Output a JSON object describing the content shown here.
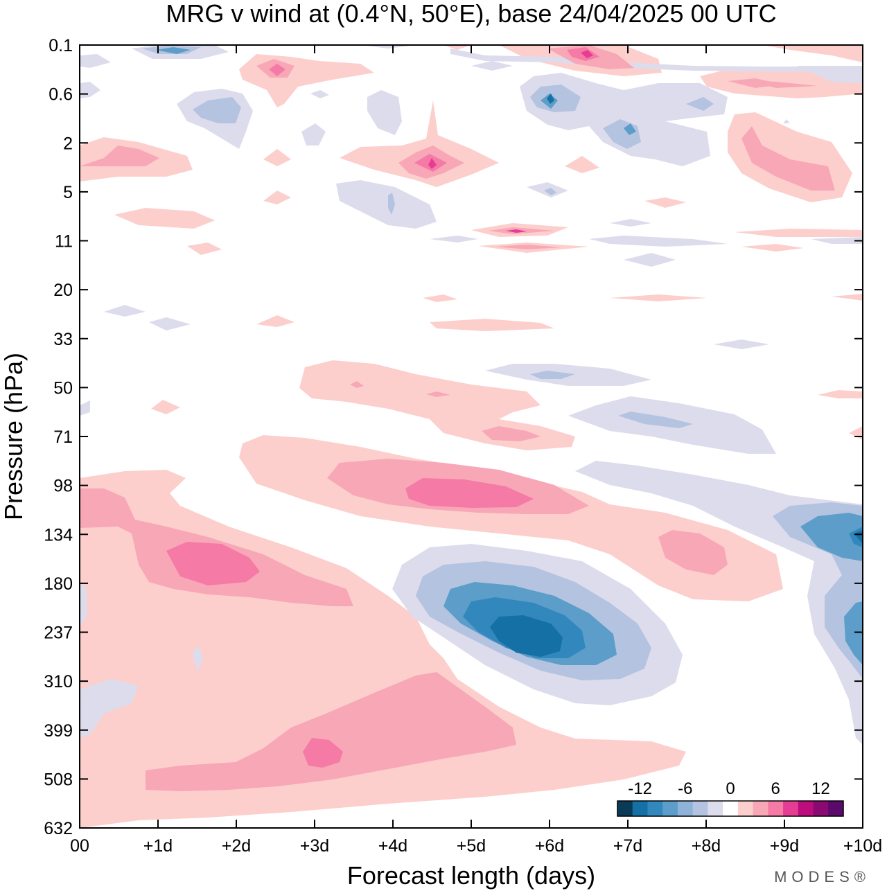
{
  "title": "MRG v wind at (0.4°N, 50°E),  base 24/04/2025  00 UTC",
  "brand": "MODES®",
  "chart_data": {
    "type": "contour",
    "title": "MRG v wind at (0.4°N, 50°E),  base 24/04/2025  00 UTC",
    "xlabel": "Forecast length (days)",
    "ylabel": "Pressure (hPa)",
    "xlim": [
      0,
      10
    ],
    "x_ticks": [
      {
        "value": 0,
        "label": "00"
      },
      {
        "value": 1,
        "label": "+1d"
      },
      {
        "value": 2,
        "label": "+2d"
      },
      {
        "value": 3,
        "label": "+3d"
      },
      {
        "value": 4,
        "label": "+4d"
      },
      {
        "value": 5,
        "label": "+5d"
      },
      {
        "value": 6,
        "label": "+6d"
      },
      {
        "value": 7,
        "label": "+7d"
      },
      {
        "value": 8,
        "label": "+8d"
      },
      {
        "value": 9,
        "label": "+9d"
      },
      {
        "value": 10,
        "label": "+10d"
      }
    ],
    "y_levels": [
      "0.1",
      "0.6",
      "2",
      "5",
      "11",
      "20",
      "33",
      "50",
      "71",
      "98",
      "134",
      "180",
      "237",
      "310",
      "399",
      "508",
      "632"
    ],
    "colorbar": {
      "levels": [
        -15,
        -12.5,
        -10,
        -7.5,
        -5,
        -2.5,
        0,
        2.5,
        5,
        7.5,
        10,
        12.5,
        15
      ],
      "ticks": [
        {
          "value": -12,
          "label": "-12"
        },
        {
          "value": -6,
          "label": "-6"
        },
        {
          "value": 0,
          "label": "0"
        },
        {
          "value": 6,
          "label": "6"
        },
        {
          "value": 12,
          "label": "12"
        }
      ],
      "colors": [
        "#0b3a57",
        "#1570a6",
        "#3288bd",
        "#5c9ec9",
        "#8fb3d8",
        "#b4c3e0",
        "#dddcec",
        "#ffffff",
        "#fccfcd",
        "#f8a7b7",
        "#f57aa6",
        "#e63d94",
        "#bd0c7d",
        "#8a0a72",
        "#5a0a6a"
      ]
    },
    "features": [
      {
        "sign": "negative",
        "label": "main blob",
        "x_day": 5.6,
        "level": "237",
        "peak": -12
      },
      {
        "sign": "positive",
        "label": "upper band",
        "x_day": 4.6,
        "level": "98",
        "peak": 8
      },
      {
        "sign": "positive",
        "label": "left band",
        "x_day": 1.6,
        "level": "180",
        "peak": 7
      },
      {
        "sign": "positive",
        "label": "lower tongue",
        "x_day": 3.1,
        "level": "399",
        "peak": 7
      },
      {
        "sign": "negative",
        "label": "right edge",
        "x_day": 9.9,
        "level": "134",
        "peak": -8
      },
      {
        "sign": "positive",
        "label": "stratosphere spot",
        "x_day": 4.5,
        "level": "2",
        "peak": 8
      },
      {
        "sign": "positive",
        "label": "top right",
        "x_day": 6.5,
        "level": "0.1",
        "peak": 7
      },
      {
        "sign": "negative",
        "label": "stratosphere",
        "x_day": 6.0,
        "level": "0.6",
        "peak": -7
      }
    ]
  }
}
